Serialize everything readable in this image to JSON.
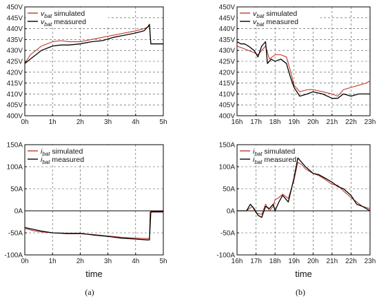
{
  "colors": {
    "simulated": "#c0392b",
    "measured": "#000000"
  },
  "chart_data": [
    {
      "id": "a-top",
      "type": "line",
      "x_ticks": [
        "0h",
        "1h",
        "2h",
        "3h",
        "4h",
        "5h"
      ],
      "xlim": [
        0,
        5
      ],
      "y_ticks": [
        "400V",
        "405V",
        "410V",
        "415V",
        "420V",
        "425V",
        "430V",
        "435V",
        "440V",
        "445V",
        "450V"
      ],
      "ylim": [
        400,
        450
      ],
      "xlabel": "",
      "ylabel": "",
      "grid": true,
      "legend_position": "top-left",
      "series": [
        {
          "name": "v_bat simulated",
          "var": "v",
          "sub": "bat",
          "suffix": " simulated",
          "color": "#c0392b",
          "x": [
            0,
            0.2,
            0.4,
            0.6,
            0.8,
            1.0,
            1.3,
            1.6,
            2.0,
            2.4,
            2.8,
            3.2,
            3.6,
            4.0,
            4.3,
            4.5,
            4.55,
            4.7,
            5.0
          ],
          "y": [
            424,
            428,
            430,
            432,
            433,
            434,
            434.5,
            434,
            434,
            435,
            436,
            437,
            438,
            439,
            440,
            441,
            433,
            433,
            433
          ]
        },
        {
          "name": "v_bat measured",
          "var": "v",
          "sub": "bat",
          "suffix": " measured",
          "color": "#000000",
          "x": [
            0,
            0.2,
            0.4,
            0.6,
            0.8,
            1.0,
            1.3,
            1.6,
            2.0,
            2.4,
            2.8,
            3.2,
            3.6,
            4.0,
            4.3,
            4.45,
            4.5,
            4.55,
            4.7,
            5.0
          ],
          "y": [
            424,
            426,
            428,
            430,
            431,
            432,
            432.5,
            432.5,
            433,
            434,
            434.5,
            436,
            437,
            438,
            439,
            441,
            442,
            433,
            433,
            433
          ]
        }
      ]
    },
    {
      "id": "b-top",
      "type": "line",
      "x_ticks": [
        "16h",
        "17h",
        "18h",
        "19h",
        "20h",
        "21h",
        "22h",
        "23h"
      ],
      "xlim": [
        16,
        23
      ],
      "y_ticks": [
        "400V",
        "405V",
        "410V",
        "415V",
        "420V",
        "425V",
        "430V",
        "435V",
        "440V",
        "445V",
        "450V"
      ],
      "ylim": [
        400,
        450
      ],
      "xlabel": "",
      "ylabel": "",
      "grid": true,
      "legend_position": "top-left",
      "series": [
        {
          "name": "v_bat simulated",
          "var": "v",
          "sub": "bat",
          "suffix": " simulated",
          "color": "#c0392b",
          "x": [
            16,
            16.3,
            16.6,
            16.9,
            17.1,
            17.3,
            17.5,
            17.7,
            18.0,
            18.3,
            18.6,
            18.8,
            19.0,
            19.3,
            19.7,
            20.0,
            20.5,
            21.0,
            21.3,
            21.6,
            22.0,
            22.4,
            22.8,
            23.0
          ],
          "y": [
            432,
            431,
            430,
            429,
            428,
            430,
            432,
            426,
            428,
            428,
            427,
            421,
            414,
            411,
            412,
            412,
            411,
            410,
            409,
            412,
            413,
            414,
            415,
            416
          ]
        },
        {
          "name": "v_bat measured",
          "var": "v",
          "sub": "bat",
          "suffix": " measured",
          "color": "#000000",
          "x": [
            16,
            16.2,
            16.4,
            16.6,
            16.9,
            17.1,
            17.3,
            17.5,
            17.6,
            17.8,
            18.0,
            18.3,
            18.6,
            18.8,
            19.0,
            19.3,
            19.7,
            20.0,
            20.5,
            21.0,
            21.3,
            21.6,
            22.0,
            22.4,
            22.8,
            23.0
          ],
          "y": [
            434,
            433,
            433,
            432,
            430,
            427,
            432,
            434,
            424,
            426,
            425,
            426,
            424,
            418,
            413,
            409,
            410,
            411,
            410,
            408,
            408,
            410,
            409,
            410,
            410,
            410
          ]
        }
      ]
    },
    {
      "id": "a-bottom",
      "type": "line",
      "x_ticks": [
        "0h",
        "1h",
        "2h",
        "3h",
        "4h",
        "5h"
      ],
      "xlim": [
        0,
        5
      ],
      "y_ticks": [
        "-100A",
        "-50A",
        "0A",
        "50A",
        "100A",
        "150A"
      ],
      "ylim": [
        -100,
        150
      ],
      "xlabel": "time",
      "ylabel": "",
      "grid": true,
      "legend_position": "top-left",
      "series": [
        {
          "name": "i_bat simulated",
          "var": "i",
          "sub": "bat",
          "suffix": " simulated",
          "color": "#c0392b",
          "x": [
            0,
            0.3,
            0.6,
            1.0,
            1.5,
            2.0,
            2.5,
            3.0,
            3.5,
            4.0,
            4.4,
            4.5,
            4.52,
            4.6,
            5.0
          ],
          "y": [
            -40,
            -45,
            -48,
            -50,
            -52,
            -52,
            -54,
            -57,
            -60,
            -62,
            -63,
            -62,
            -3,
            -3,
            -3
          ]
        },
        {
          "name": "i_bat measured",
          "var": "i",
          "sub": "bat",
          "suffix": " measured",
          "color": "#000000",
          "x": [
            0,
            0.3,
            0.6,
            1.0,
            1.5,
            2.0,
            2.5,
            3.0,
            3.5,
            4.0,
            4.4,
            4.5,
            4.55,
            4.6,
            5.0
          ],
          "y": [
            -38,
            -42,
            -46,
            -50,
            -51,
            -51,
            -55,
            -58,
            -62,
            -64,
            -66,
            -66,
            -2,
            -2,
            -2
          ]
        }
      ]
    },
    {
      "id": "b-bottom",
      "type": "line",
      "x_ticks": [
        "16h",
        "17h",
        "18h",
        "19h",
        "20h",
        "21h",
        "22h",
        "23h"
      ],
      "xlim": [
        16,
        23
      ],
      "y_ticks": [
        "-100A",
        "-50A",
        "0A",
        "50A",
        "100A",
        "150A"
      ],
      "ylim": [
        -100,
        150
      ],
      "xlabel": "time",
      "ylabel": "",
      "grid": true,
      "legend_position": "top-left",
      "series": [
        {
          "name": "i_bat simulated",
          "var": "i",
          "sub": "bat",
          "suffix": " simulated",
          "color": "#c0392b",
          "x": [
            16,
            16.5,
            16.8,
            17.0,
            17.3,
            17.5,
            17.7,
            17.9,
            18.0,
            18.2,
            18.4,
            18.7,
            19.0,
            19.2,
            19.4,
            19.6,
            20.0,
            20.3,
            20.6,
            21.0,
            21.3,
            21.6,
            22.0,
            22.3,
            22.6,
            23.0
          ],
          "y": [
            0,
            0,
            10,
            -5,
            -8,
            15,
            0,
            10,
            25,
            30,
            38,
            28,
            70,
            110,
            105,
            95,
            85,
            80,
            72,
            60,
            58,
            45,
            30,
            20,
            10,
            5
          ]
        },
        {
          "name": "i_bat measured",
          "var": "i",
          "sub": "bat",
          "suffix": " measured",
          "color": "#000000",
          "x": [
            16,
            16.5,
            16.7,
            16.9,
            17.1,
            17.3,
            17.5,
            17.7,
            17.9,
            18.0,
            18.2,
            18.4,
            18.7,
            19.0,
            19.2,
            19.4,
            19.6,
            20.0,
            20.3,
            20.6,
            21.0,
            21.3,
            21.6,
            22.0,
            22.3,
            22.6,
            23.0
          ],
          "y": [
            0,
            0,
            15,
            5,
            -10,
            -15,
            10,
            5,
            15,
            0,
            20,
            35,
            20,
            75,
            120,
            110,
            100,
            85,
            82,
            75,
            65,
            55,
            50,
            35,
            15,
            10,
            0
          ]
        }
      ]
    }
  ],
  "labels": {
    "a": "(a)",
    "b": "(b)"
  }
}
